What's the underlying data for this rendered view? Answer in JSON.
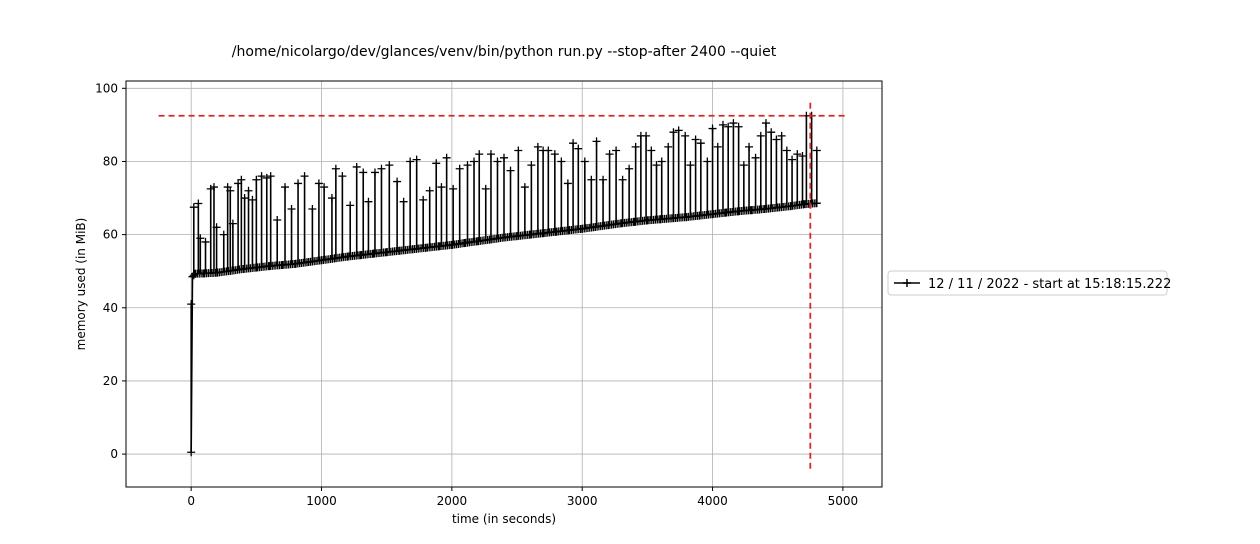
{
  "chart_data": {
    "type": "line",
    "title": "/home/nicolargo/dev/glances/venv/bin/python run.py --stop-after 2400 --quiet",
    "xlabel": "time (in seconds)",
    "ylabel": "memory used (in MiB)",
    "xlim": [
      -500,
      5300
    ],
    "ylim": [
      -9,
      102
    ],
    "xticks": [
      0,
      1000,
      2000,
      3000,
      4000,
      5000
    ],
    "xtick_labels": [
      "0",
      "1000",
      "2000",
      "3000",
      "4000",
      "5000"
    ],
    "yticks": [
      0,
      20,
      40,
      60,
      80,
      100
    ],
    "ytick_labels": [
      "0",
      "20",
      "40",
      "60",
      "80",
      "100"
    ],
    "grid": true,
    "legend_position": "right",
    "series": [
      {
        "name": "12 / 11 / 2022 - start at 15:18:15.222",
        "color": "#000000",
        "marker": "+",
        "base": {
          "x": [
            0,
            10,
            30,
            100,
            200,
            300,
            400,
            500,
            600,
            700,
            800,
            900,
            1000,
            1100,
            1200,
            1300,
            1400,
            1500,
            1600,
            1700,
            1800,
            1900,
            2000,
            2100,
            2200,
            2300,
            2400,
            2500,
            2600,
            2700,
            2800,
            2900,
            3000,
            3100,
            3200,
            3300,
            3400,
            3500,
            3600,
            3700,
            3800,
            3900,
            4000,
            4100,
            4200,
            4300,
            4400,
            4500,
            4600,
            4700,
            4800
          ],
          "y": [
            0.5,
            48.5,
            49.3,
            49.4,
            49.6,
            50.1,
            50.6,
            51.0,
            51.4,
            51.7,
            52.0,
            52.5,
            53.0,
            53.5,
            54.0,
            54.4,
            54.8,
            55.2,
            55.6,
            56.0,
            56.4,
            56.8,
            57.2,
            57.7,
            58.2,
            58.7,
            59.2,
            59.6,
            60.0,
            60.4,
            60.8,
            61.2,
            61.6,
            62.1,
            62.6,
            63.1,
            63.5,
            63.9,
            64.2,
            64.5,
            64.8,
            65.2,
            65.6,
            66.0,
            66.4,
            66.7,
            67.0,
            67.4,
            67.8,
            68.3,
            68.6
          ]
        },
        "peaks": [
          [
            0,
            41
          ],
          [
            20,
            67.5
          ],
          [
            55,
            68.5
          ],
          [
            70,
            59
          ],
          [
            110,
            58
          ],
          [
            150,
            72.5
          ],
          [
            175,
            73
          ],
          [
            195,
            62
          ],
          [
            250,
            60
          ],
          [
            280,
            73
          ],
          [
            300,
            72
          ],
          [
            320,
            63
          ],
          [
            360,
            74
          ],
          [
            385,
            75
          ],
          [
            410,
            70
          ],
          [
            440,
            72
          ],
          [
            470,
            69.5
          ],
          [
            500,
            75
          ],
          [
            540,
            76
          ],
          [
            580,
            75.5
          ],
          [
            610,
            76
          ],
          [
            660,
            64
          ],
          [
            720,
            73
          ],
          [
            770,
            67
          ],
          [
            820,
            74
          ],
          [
            870,
            76
          ],
          [
            930,
            67
          ],
          [
            980,
            74
          ],
          [
            1020,
            73
          ],
          [
            1080,
            70
          ],
          [
            1110,
            78
          ],
          [
            1160,
            76
          ],
          [
            1220,
            68
          ],
          [
            1270,
            78.5
          ],
          [
            1320,
            77
          ],
          [
            1360,
            69
          ],
          [
            1410,
            77
          ],
          [
            1460,
            78
          ],
          [
            1520,
            79
          ],
          [
            1580,
            74.5
          ],
          [
            1630,
            69
          ],
          [
            1680,
            80
          ],
          [
            1730,
            80.5
          ],
          [
            1780,
            69.5
          ],
          [
            1830,
            72
          ],
          [
            1880,
            79.5
          ],
          [
            1920,
            73
          ],
          [
            1960,
            81
          ],
          [
            2010,
            72.5
          ],
          [
            2060,
            78
          ],
          [
            2120,
            79
          ],
          [
            2170,
            80
          ],
          [
            2210,
            82
          ],
          [
            2260,
            72.5
          ],
          [
            2300,
            82
          ],
          [
            2350,
            80
          ],
          [
            2400,
            81
          ],
          [
            2450,
            77.5
          ],
          [
            2510,
            83
          ],
          [
            2560,
            73
          ],
          [
            2610,
            79
          ],
          [
            2660,
            84
          ],
          [
            2700,
            83
          ],
          [
            2740,
            83
          ],
          [
            2790,
            82
          ],
          [
            2840,
            80
          ],
          [
            2890,
            74
          ],
          [
            2930,
            85
          ],
          [
            2970,
            83.5
          ],
          [
            3020,
            80
          ],
          [
            3070,
            75
          ],
          [
            3110,
            85.5
          ],
          [
            3160,
            75
          ],
          [
            3210,
            82
          ],
          [
            3260,
            83
          ],
          [
            3310,
            75
          ],
          [
            3360,
            78
          ],
          [
            3410,
            84
          ],
          [
            3450,
            87
          ],
          [
            3490,
            87
          ],
          [
            3530,
            83
          ],
          [
            3570,
            79
          ],
          [
            3610,
            80
          ],
          [
            3660,
            84
          ],
          [
            3700,
            88
          ],
          [
            3740,
            88.5
          ],
          [
            3790,
            87
          ],
          [
            3830,
            79
          ],
          [
            3870,
            86
          ],
          [
            3910,
            85
          ],
          [
            3960,
            80
          ],
          [
            4000,
            89
          ],
          [
            4040,
            84
          ],
          [
            4080,
            90
          ],
          [
            4120,
            89.5
          ],
          [
            4160,
            90.5
          ],
          [
            4200,
            89.5
          ],
          [
            4240,
            79
          ],
          [
            4280,
            84
          ],
          [
            4330,
            81
          ],
          [
            4370,
            87
          ],
          [
            4410,
            90.5
          ],
          [
            4450,
            88
          ],
          [
            4490,
            86
          ],
          [
            4530,
            87
          ],
          [
            4570,
            83
          ],
          [
            4610,
            80.5
          ],
          [
            4650,
            82
          ],
          [
            4690,
            81.5
          ],
          [
            4720,
            92.5
          ],
          [
            4760,
            92.5
          ],
          [
            4800,
            83
          ]
        ]
      }
    ],
    "reference_lines": [
      {
        "orientation": "horizontal",
        "value": 92.5,
        "from": -250,
        "to": 5040,
        "color": "#d62728",
        "style": "dashed"
      },
      {
        "orientation": "vertical",
        "value": 4750,
        "from": -4,
        "to": 97,
        "color": "#d62728",
        "style": "dashed"
      }
    ]
  }
}
